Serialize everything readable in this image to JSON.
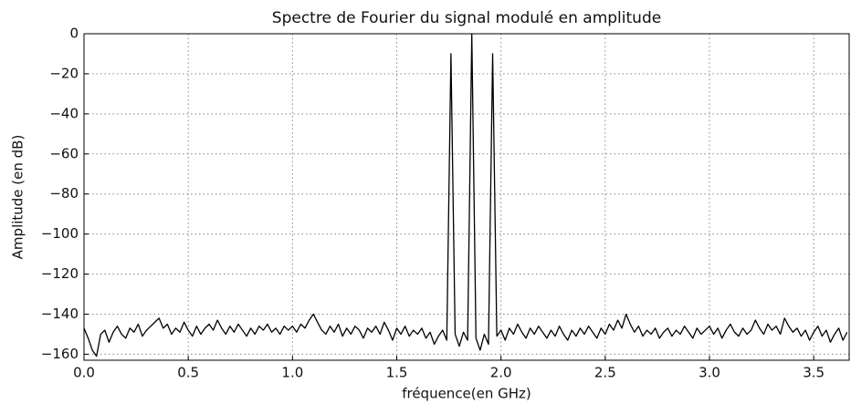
{
  "chart_data": {
    "type": "line",
    "title": "Spectre de Fourier du signal modulé en amplitude",
    "xlabel": "fréquence(en GHz)",
    "ylabel": "Amplitude (en dB)",
    "xlim": [
      0,
      3.67
    ],
    "ylim": [
      -163,
      0
    ],
    "xticks": [
      {
        "value": 0,
        "label": "0.0"
      },
      {
        "value": 0.5,
        "label": "0.5"
      },
      {
        "value": 1,
        "label": "1.0"
      },
      {
        "value": 1.5,
        "label": "1.5"
      },
      {
        "value": 2,
        "label": "2.0"
      },
      {
        "value": 2.5,
        "label": "2.5"
      },
      {
        "value": 3,
        "label": "3.0"
      },
      {
        "value": 3.5,
        "label": "3.5"
      }
    ],
    "yticks": [
      0,
      {
        "value": -20,
        "label": "−20"
      },
      {
        "value": -40,
        "label": "−40"
      },
      {
        "value": -60,
        "label": "−60"
      },
      {
        "value": -80,
        "label": "−80"
      },
      {
        "value": -100,
        "label": "−100"
      },
      {
        "value": -120,
        "label": "−120"
      },
      {
        "value": -140,
        "label": "−140"
      },
      {
        "value": -160,
        "label": "−160"
      }
    ],
    "grid": true,
    "x": [
      0,
      0.02,
      0.04,
      0.06,
      0.08,
      0.1,
      0.12,
      0.14,
      0.16,
      0.18,
      0.2,
      0.22,
      0.24,
      0.26,
      0.28,
      0.3,
      0.32,
      0.34,
      0.36,
      0.38,
      0.4,
      0.42,
      0.44,
      0.46,
      0.48,
      0.5,
      0.52,
      0.54,
      0.56,
      0.58,
      0.6,
      0.62,
      0.64,
      0.66,
      0.68,
      0.7,
      0.72,
      0.74,
      0.76,
      0.78,
      0.8,
      0.82,
      0.84,
      0.86,
      0.88,
      0.9,
      0.92,
      0.94,
      0.96,
      0.98,
      1,
      1.02,
      1.04,
      1.06,
      1.08,
      1.1,
      1.12,
      1.14,
      1.16,
      1.18,
      1.2,
      1.22,
      1.24,
      1.26,
      1.28,
      1.3,
      1.32,
      1.34,
      1.36,
      1.38,
      1.4,
      1.42,
      1.44,
      1.46,
      1.48,
      1.5,
      1.52,
      1.54,
      1.56,
      1.58,
      1.6,
      1.62,
      1.64,
      1.66,
      1.68,
      1.7,
      1.72,
      1.74,
      1.76,
      1.78,
      1.8,
      1.82,
      1.84,
      1.86,
      1.88,
      1.9,
      1.92,
      1.94,
      1.96,
      1.98,
      2,
      2.02,
      2.04,
      2.06,
      2.08,
      2.1,
      2.12,
      2.14,
      2.16,
      2.18,
      2.2,
      2.22,
      2.24,
      2.26,
      2.28,
      2.3,
      2.32,
      2.34,
      2.36,
      2.38,
      2.4,
      2.42,
      2.44,
      2.46,
      2.48,
      2.5,
      2.52,
      2.54,
      2.56,
      2.58,
      2.6,
      2.62,
      2.64,
      2.66,
      2.68,
      2.7,
      2.72,
      2.74,
      2.76,
      2.78,
      2.8,
      2.82,
      2.84,
      2.86,
      2.88,
      2.9,
      2.92,
      2.94,
      2.96,
      2.98,
      3,
      3.02,
      3.04,
      3.06,
      3.08,
      3.1,
      3.12,
      3.14,
      3.16,
      3.18,
      3.2,
      3.22,
      3.24,
      3.26,
      3.28,
      3.3,
      3.32,
      3.34,
      3.36,
      3.38,
      3.4,
      3.42,
      3.44,
      3.46,
      3.48,
      3.5,
      3.52,
      3.54,
      3.56,
      3.58,
      3.6,
      3.62,
      3.64,
      3.66
    ],
    "series": [
      {
        "color": "#000000",
        "values": [
          -147,
          -152,
          -158,
          -161,
          -150,
          -148,
          -154,
          -149,
          -146,
          -150,
          -152,
          -147,
          -149,
          -145,
          -151,
          -148,
          -146,
          -144,
          -142,
          -147,
          -145,
          -150,
          -147,
          -149,
          -144,
          -148,
          -151,
          -146,
          -150,
          -147,
          -145,
          -148,
          -143,
          -147,
          -150,
          -146,
          -149,
          -145,
          -148,
          -151,
          -147,
          -150,
          -146,
          -148,
          -145,
          -149,
          -147,
          -150,
          -146,
          -148,
          -146,
          -149,
          -145,
          -147,
          -143,
          -140,
          -144,
          -148,
          -150,
          -146,
          -149,
          -145,
          -151,
          -147,
          -150,
          -146,
          -148,
          -152,
          -147,
          -149,
          -146,
          -150,
          -144,
          -148,
          -153,
          -147,
          -150,
          -146,
          -151,
          -148,
          -150,
          -147,
          -152,
          -149,
          -155,
          -151,
          -148,
          -153,
          -10,
          -150,
          -156,
          -149,
          -153,
          0,
          -152,
          -158,
          -150,
          -155,
          -10,
          -151,
          -148,
          -153,
          -147,
          -150,
          -145,
          -149,
          -152,
          -147,
          -150,
          -146,
          -149,
          -152,
          -148,
          -151,
          -146,
          -150,
          -153,
          -148,
          -151,
          -147,
          -150,
          -146,
          -149,
          -152,
          -147,
          -150,
          -145,
          -148,
          -143,
          -147,
          -140,
          -145,
          -149,
          -146,
          -151,
          -148,
          -150,
          -147,
          -152,
          -149,
          -147,
          -151,
          -148,
          -150,
          -146,
          -149,
          -152,
          -147,
          -150,
          -148,
          -146,
          -150,
          -147,
          -152,
          -148,
          -145,
          -149,
          -151,
          -147,
          -150,
          -148,
          -143,
          -147,
          -150,
          -145,
          -148,
          -146,
          -150,
          -142,
          -146,
          -149,
          -147,
          -151,
          -148,
          -153,
          -149,
          -146,
          -151,
          -148,
          -154,
          -150,
          -147,
          -153,
          -149
        ]
      }
    ]
  }
}
